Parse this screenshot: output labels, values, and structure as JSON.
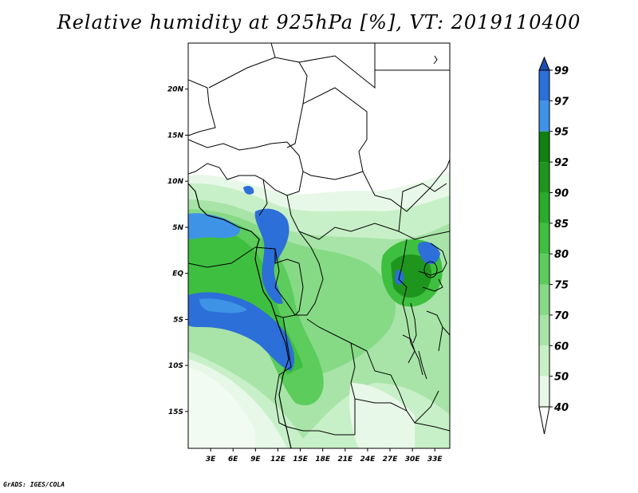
{
  "title": "Relative humidity at 925hPa [%], VT: 2019110400",
  "credit": "GrADS: IGES/COLA",
  "map": {
    "lat_ticks": [
      "20N",
      "15N",
      "10N",
      "5N",
      "EQ",
      "5S",
      "10S",
      "15S"
    ],
    "lon_ticks": [
      "3E",
      "6E",
      "9E",
      "12E",
      "15E",
      "18E",
      "21E",
      "24E",
      "27E",
      "30E",
      "33E"
    ],
    "lat_range": [
      -19,
      25
    ],
    "lon_range": [
      0,
      35
    ]
  },
  "colorbar": {
    "levels": [
      "40",
      "50",
      "60",
      "70",
      "75",
      "80",
      "85",
      "90",
      "92",
      "95",
      "97",
      "99"
    ],
    "colors": [
      "#ffffff",
      "#e8f8e8",
      "#c8f0c8",
      "#a8e4a8",
      "#86da86",
      "#5ccc5c",
      "#3fbf3f",
      "#29ac29",
      "#1e961e",
      "#0f820f",
      "#3e93e6",
      "#2c6fd8",
      "#1c4fb0"
    ]
  }
}
